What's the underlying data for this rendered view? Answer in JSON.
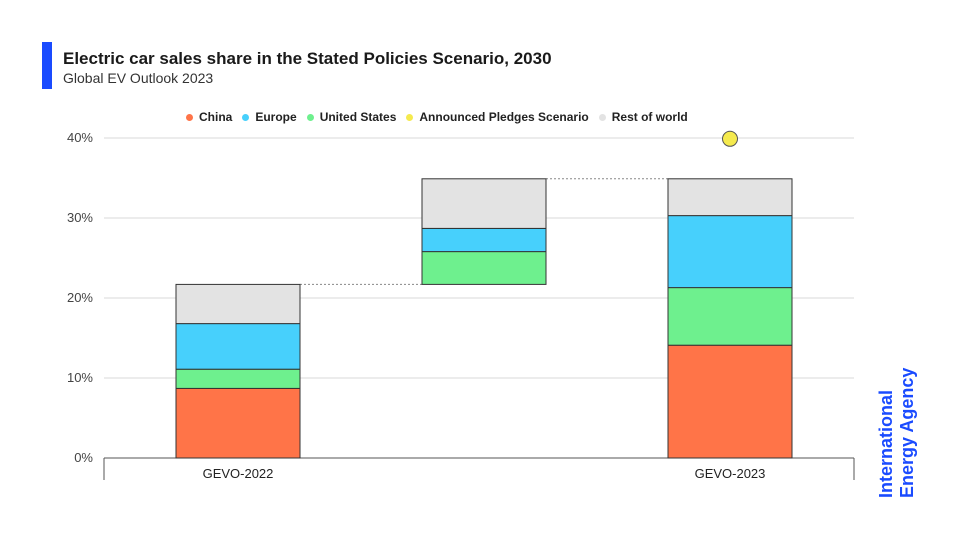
{
  "header": {
    "title": "Electric car sales share in the Stated Policies Scenario, 2030",
    "subtitle": "Global EV Outlook 2023"
  },
  "brand": {
    "line1": "International",
    "line2": "Energy Agency"
  },
  "colors": {
    "accent": "#1a4bff",
    "china": "#ff7448",
    "europe": "#47d0fc",
    "united_states": "#6ef08e",
    "announced_pledges": "#f5ea4e",
    "rest_of_world": "#e3e3e3",
    "grid": "#d9d9d9",
    "axis": "#555555",
    "bar_stroke": "#333333"
  },
  "chart_data": {
    "type": "bar",
    "stacked": true,
    "title": "Electric car sales share in the Stated Policies Scenario, 2030",
    "subtitle": "Global EV Outlook 2023",
    "xlabel": "",
    "ylabel": "",
    "ylim": [
      0,
      40
    ],
    "yticks": [
      0,
      10,
      20,
      30,
      40
    ],
    "ytick_labels": [
      "0%",
      "10%",
      "20%",
      "30%",
      "40%"
    ],
    "grid": true,
    "legend_position": "top",
    "categories": [
      "GEVO-2022",
      "",
      "GEVO-2023"
    ],
    "legend": [
      {
        "name": "China",
        "color_key": "china"
      },
      {
        "name": "Europe",
        "color_key": "europe"
      },
      {
        "name": "United States",
        "color_key": "united_states"
      },
      {
        "name": "Announced Pledges Scenario",
        "color_key": "announced_pledges"
      },
      {
        "name": "Rest of world",
        "color_key": "rest_of_world"
      }
    ],
    "bars": [
      {
        "category": "GEVO-2022",
        "base": 0,
        "segments": [
          {
            "series": "China",
            "color_key": "china",
            "value": 8.7
          },
          {
            "series": "United States",
            "color_key": "united_states",
            "value": 2.4
          },
          {
            "series": "Europe",
            "color_key": "europe",
            "value": 5.7
          },
          {
            "series": "Rest of world",
            "color_key": "rest_of_world",
            "value": 4.9
          }
        ]
      },
      {
        "category": "",
        "base": 21.7,
        "segments": [
          {
            "series": "United States",
            "color_key": "united_states",
            "value": 4.1
          },
          {
            "series": "Europe",
            "color_key": "europe",
            "value": 2.9
          },
          {
            "series": "Rest of world",
            "color_key": "rest_of_world",
            "value": 6.2
          }
        ]
      },
      {
        "category": "GEVO-2023",
        "base": 0,
        "segments": [
          {
            "series": "China",
            "color_key": "china",
            "value": 14.1
          },
          {
            "series": "United States",
            "color_key": "united_states",
            "value": 7.2
          },
          {
            "series": "Europe",
            "color_key": "europe",
            "value": 9.0
          },
          {
            "series": "Rest of world",
            "color_key": "rest_of_world",
            "value": 4.6
          }
        ]
      }
    ],
    "connectors": [
      {
        "from_bar": 0,
        "to_bar": 1,
        "value": 21.7
      },
      {
        "from_bar": 1,
        "to_bar": 2,
        "value": 34.9
      }
    ],
    "points": [
      {
        "series": "Announced Pledges Scenario",
        "category": "GEVO-2023",
        "value": 39.9,
        "color_key": "announced_pledges"
      }
    ]
  }
}
